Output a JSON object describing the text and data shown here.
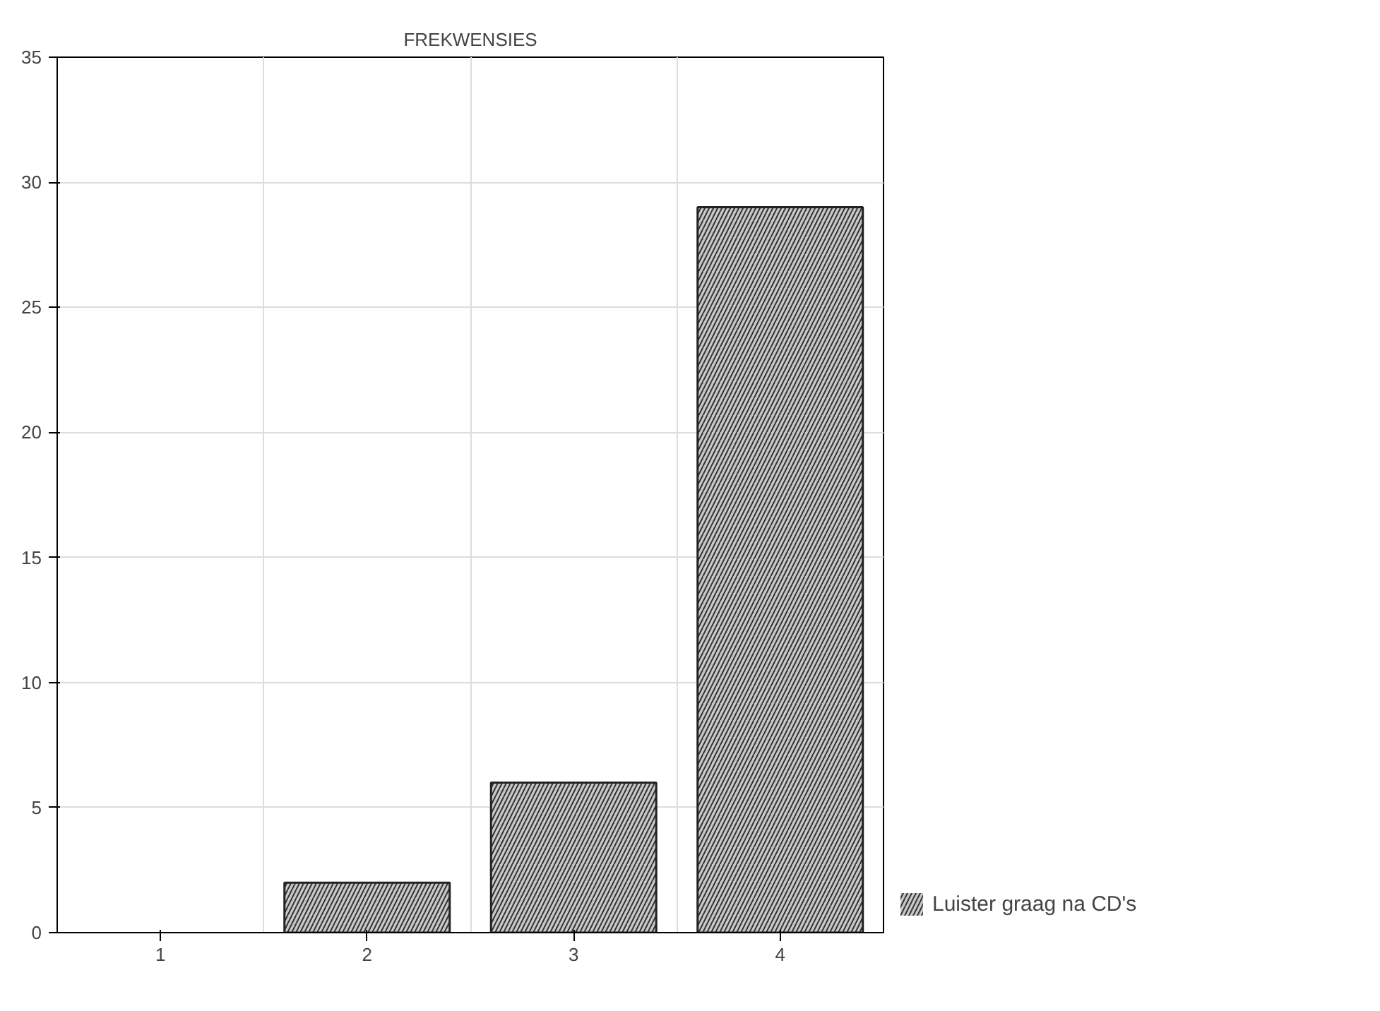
{
  "chart_data": {
    "type": "bar",
    "title": "FREKWENSIES",
    "categories": [
      "1",
      "2",
      "3",
      "4"
    ],
    "series": [
      {
        "name": "Luister graag na CD's",
        "color": "#c8c8c8",
        "values": [
          0,
          2,
          6,
          29
        ]
      }
    ],
    "ylim": [
      0,
      35
    ],
    "yticks": [
      0,
      5,
      10,
      15,
      20,
      25,
      30,
      35
    ],
    "grid": true,
    "legend": "bottom right"
  }
}
